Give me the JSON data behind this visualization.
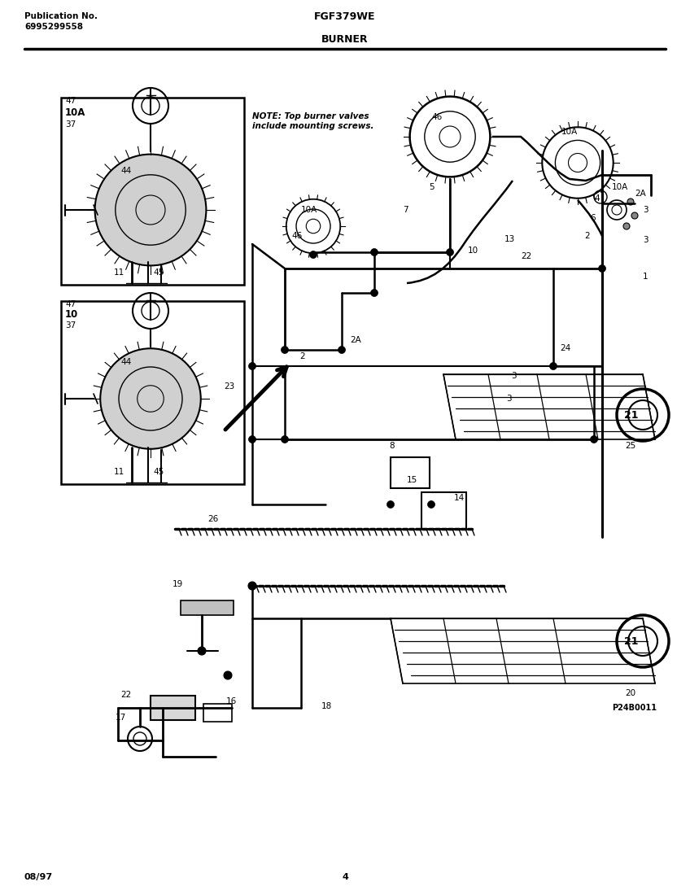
{
  "title_left_line1": "Publication No.",
  "title_left_line2": "6995299558",
  "title_center": "FGF379WE",
  "subtitle_center": "BURNER",
  "footer_left": "08/97",
  "footer_center": "4",
  "bg_color": "#ffffff",
  "note_text": "NOTE: Top burner valves\ninclude mounting screws.",
  "part_code": "P24B0011",
  "page_width": 8.48,
  "page_height": 11.0
}
